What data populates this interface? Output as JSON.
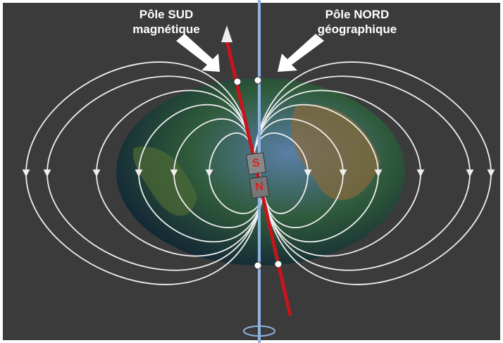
{
  "labels": {
    "south_magnetic": [
      "Pôle SUD",
      "magnétique"
    ],
    "north_geographic": [
      "Pôle NORD",
      "géographique"
    ]
  },
  "magnet": {
    "top": "S",
    "bottom": "N"
  }
}
